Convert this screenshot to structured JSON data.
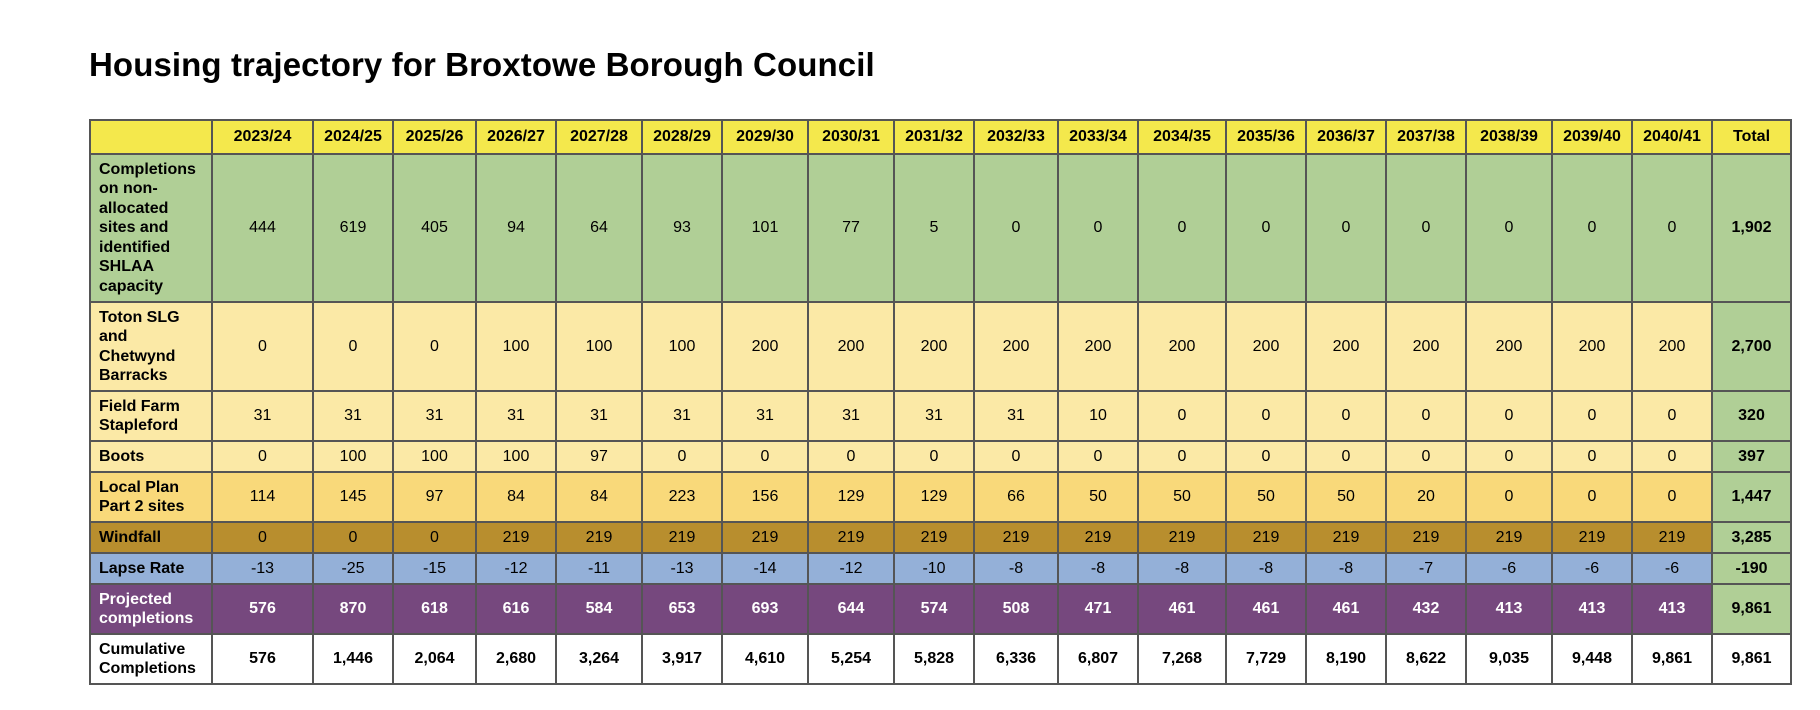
{
  "title": "Housing trajectory for Broxtowe Borough Council",
  "table": {
    "corner": "",
    "years": [
      "2023/24",
      "2024/25",
      "2025/26",
      "2026/27",
      "2027/28",
      "2028/29",
      "2029/30",
      "2030/31",
      "2031/32",
      "2032/33",
      "2033/34",
      "2034/35",
      "2035/36",
      "2036/37",
      "2037/38",
      "2038/39",
      "2039/40",
      "2040/41"
    ],
    "total_header": "Total",
    "rows": [
      {
        "key": "completions",
        "label": "Completions on non-allocated sites and identified SHLAA capacity",
        "values": [
          "444",
          "619",
          "405",
          "94",
          "64",
          "93",
          "101",
          "77",
          "5",
          "0",
          "0",
          "0",
          "0",
          "0",
          "0",
          "0",
          "0",
          "0"
        ],
        "total": "1,902"
      },
      {
        "key": "toton",
        "label": "Toton SLG and Chetwynd Barracks",
        "values": [
          "0",
          "0",
          "0",
          "100",
          "100",
          "100",
          "200",
          "200",
          "200",
          "200",
          "200",
          "200",
          "200",
          "200",
          "200",
          "200",
          "200",
          "200"
        ],
        "total": "2,700"
      },
      {
        "key": "field",
        "label": "Field Farm Stapleford",
        "values": [
          "31",
          "31",
          "31",
          "31",
          "31",
          "31",
          "31",
          "31",
          "31",
          "31",
          "10",
          "0",
          "0",
          "0",
          "0",
          "0",
          "0",
          "0"
        ],
        "total": "320"
      },
      {
        "key": "boots",
        "label": "Boots",
        "values": [
          "0",
          "100",
          "100",
          "100",
          "97",
          "0",
          "0",
          "0",
          "0",
          "0",
          "0",
          "0",
          "0",
          "0",
          "0",
          "0",
          "0",
          "0"
        ],
        "total": "397"
      },
      {
        "key": "localplan",
        "label": "Local Plan Part 2 sites",
        "values": [
          "114",
          "145",
          "97",
          "84",
          "84",
          "223",
          "156",
          "129",
          "129",
          "66",
          "50",
          "50",
          "50",
          "50",
          "20",
          "0",
          "0",
          "0"
        ],
        "total": "1,447"
      },
      {
        "key": "windfall",
        "label": "Windfall",
        "values": [
          "0",
          "0",
          "0",
          "219",
          "219",
          "219",
          "219",
          "219",
          "219",
          "219",
          "219",
          "219",
          "219",
          "219",
          "219",
          "219",
          "219",
          "219"
        ],
        "total": "3,285"
      },
      {
        "key": "lapse",
        "label": "Lapse Rate",
        "values": [
          "-13",
          "-25",
          "-15",
          "-12",
          "-11",
          "-13",
          "-14",
          "-12",
          "-10",
          "-8",
          "-8",
          "-8",
          "-8",
          "-8",
          "-7",
          "-6",
          "-6",
          "-6"
        ],
        "total": "-190"
      },
      {
        "key": "projected",
        "label": "Projected completions",
        "values": [
          "576",
          "870",
          "618",
          "616",
          "584",
          "653",
          "693",
          "644",
          "574",
          "508",
          "471",
          "461",
          "461",
          "461",
          "432",
          "413",
          "413",
          "413"
        ],
        "total": "9,861"
      },
      {
        "key": "cumulative",
        "label": "Cumulative Completions",
        "values": [
          "576",
          "1,446",
          "2,064",
          "2,680",
          "3,264",
          "3,917",
          "4,610",
          "5,254",
          "5,828",
          "6,336",
          "6,807",
          "7,268",
          "7,729",
          "8,190",
          "8,622",
          "9,035",
          "9,448",
          "9,861"
        ],
        "total": "9,861"
      }
    ]
  }
}
